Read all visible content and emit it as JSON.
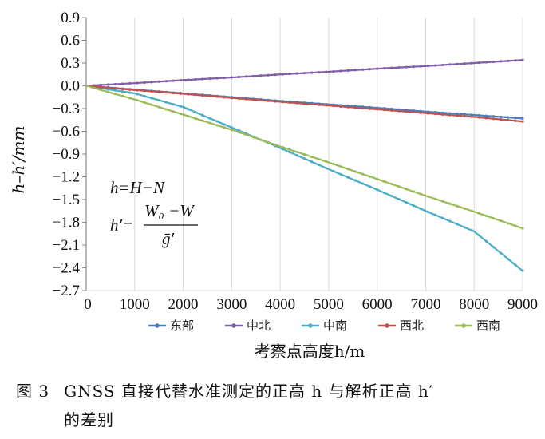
{
  "chart_data": {
    "type": "line",
    "title": "",
    "xlabel": "考察点高度h/m",
    "ylabel": "h–h′/mm",
    "x": [
      0,
      1000,
      2000,
      3000,
      4000,
      5000,
      6000,
      7000,
      8000,
      9000
    ],
    "xlim": [
      0,
      9000
    ],
    "ylim": [
      -2.7,
      0.9
    ],
    "xticks": [
      "0",
      "1000",
      "2000",
      "3000",
      "4000",
      "5000",
      "6000",
      "7000",
      "8000",
      "9000"
    ],
    "yticks": [
      "0.9",
      "0.6",
      "0.3",
      "0.0",
      "−0.3",
      "−0.6",
      "−0.9",
      "−1.2",
      "−1.5",
      "−1.8",
      "−2.1",
      "−2.4",
      "−2.7"
    ],
    "ytick_values": [
      0.9,
      0.6,
      0.3,
      0.0,
      -0.3,
      -0.6,
      -0.9,
      -1.2,
      -1.5,
      -1.8,
      -2.1,
      -2.4,
      -2.7
    ],
    "grid": "vertical",
    "legend_position": "bottom",
    "series": [
      {
        "name": "东部",
        "color": "#4a7ebb",
        "values": [
          0,
          -0.05,
          -0.1,
          -0.15,
          -0.2,
          -0.245,
          -0.29,
          -0.34,
          -0.385,
          -0.43
        ]
      },
      {
        "name": "中北",
        "color": "#7f5ea8",
        "values": [
          0,
          0.035,
          0.075,
          0.11,
          0.15,
          0.185,
          0.225,
          0.26,
          0.3,
          0.34
        ]
      },
      {
        "name": "中南",
        "color": "#4bacc6",
        "values": [
          0,
          -0.1,
          -0.28,
          -0.55,
          -0.82,
          -1.1,
          -1.37,
          -1.65,
          -1.92,
          -2.44
        ]
      },
      {
        "name": "西北",
        "color": "#c0504d",
        "values": [
          0,
          -0.055,
          -0.105,
          -0.16,
          -0.21,
          -0.26,
          -0.31,
          -0.36,
          -0.41,
          -0.47
        ]
      },
      {
        "name": "西南",
        "color": "#9bbb59",
        "values": [
          0,
          -0.18,
          -0.38,
          -0.58,
          -0.8,
          -1.01,
          -1.23,
          -1.45,
          -1.66,
          -1.88
        ]
      }
    ]
  },
  "equation": {
    "line1": "h=H−N",
    "lhs": "h′=",
    "numerator": "W₀ −W",
    "denominator": "ḡ′"
  },
  "caption": {
    "figure_no": "图 3",
    "line1": "GNSS 直接代替水准测定的正高 h 与解析正高 h′",
    "line2": "的差别"
  }
}
